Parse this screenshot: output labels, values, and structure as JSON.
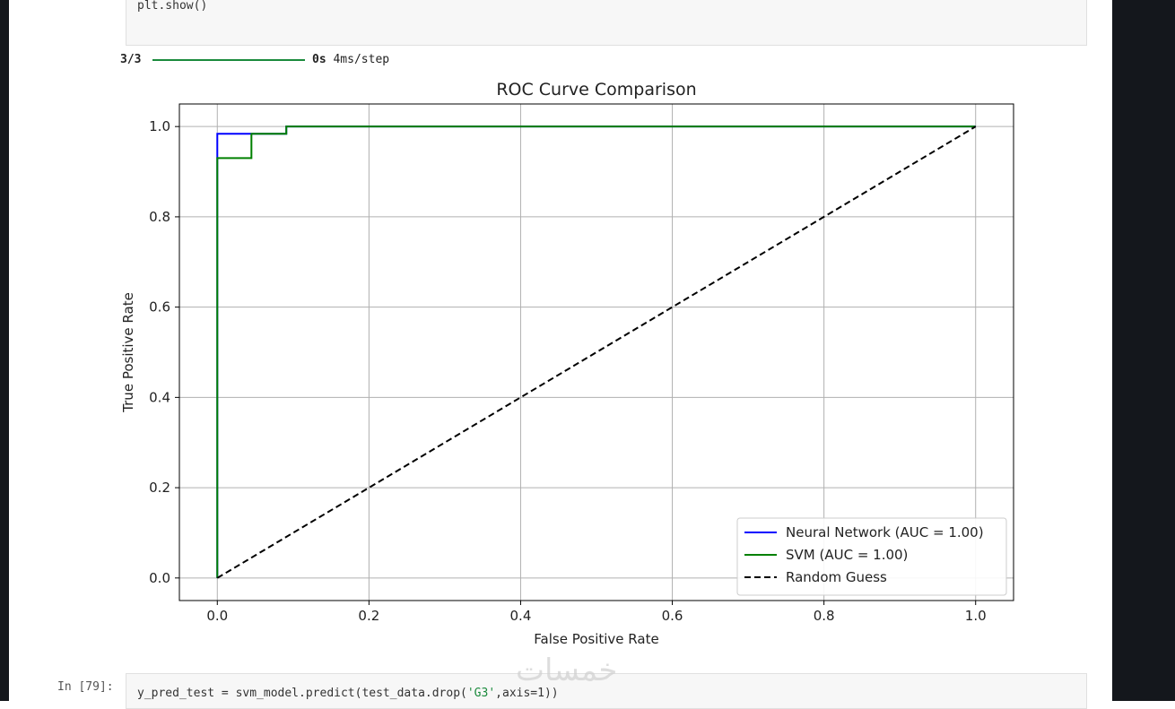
{
  "top_cell": {
    "code": "plt.show()"
  },
  "progress": {
    "steps": "3/3",
    "fraction": 1.0,
    "time": "0s",
    "rate": "4ms/step"
  },
  "bottom_cell": {
    "prompt": "In [79]:",
    "code_prefix": "y_pred_test = svm_model.predict(test_data.drop(",
    "code_string": "'G3'",
    "code_suffix": ",axis=1))"
  },
  "watermark": "خمسات",
  "chart_data": {
    "type": "line",
    "title": "ROC Curve Comparison",
    "xlabel": "False Positive Rate",
    "ylabel": "True Positive Rate",
    "xlim": [
      -0.05,
      1.05
    ],
    "ylim": [
      -0.05,
      1.05
    ],
    "xticks": [
      0.0,
      0.2,
      0.4,
      0.6,
      0.8,
      1.0
    ],
    "yticks": [
      0.0,
      0.2,
      0.4,
      0.6,
      0.8,
      1.0
    ],
    "xtick_labels": [
      "0.0",
      "0.2",
      "0.4",
      "0.6",
      "0.8",
      "1.0"
    ],
    "ytick_labels": [
      "0.0",
      "0.2",
      "0.4",
      "0.6",
      "0.8",
      "1.0"
    ],
    "grid": true,
    "legend_position": "lower-right",
    "series": [
      {
        "name": "Neural Network (AUC = 1.00)",
        "color": "#0000ff",
        "dash": false,
        "x": [
          0.0,
          0.0,
          0.0,
          0.045,
          0.045,
          0.091,
          0.091,
          1.0
        ],
        "y": [
          0.0,
          0.93,
          0.984,
          0.984,
          0.984,
          0.984,
          1.0,
          1.0
        ]
      },
      {
        "name": "SVM (AUC = 1.00)",
        "color": "#008000",
        "dash": false,
        "x": [
          0.0,
          0.0,
          0.045,
          0.045,
          0.091,
          0.091,
          1.0
        ],
        "y": [
          0.0,
          0.93,
          0.93,
          0.984,
          0.984,
          1.0,
          1.0
        ]
      },
      {
        "name": "Random Guess",
        "color": "#000000",
        "dash": true,
        "x": [
          0.0,
          1.0
        ],
        "y": [
          0.0,
          1.0
        ]
      }
    ]
  }
}
